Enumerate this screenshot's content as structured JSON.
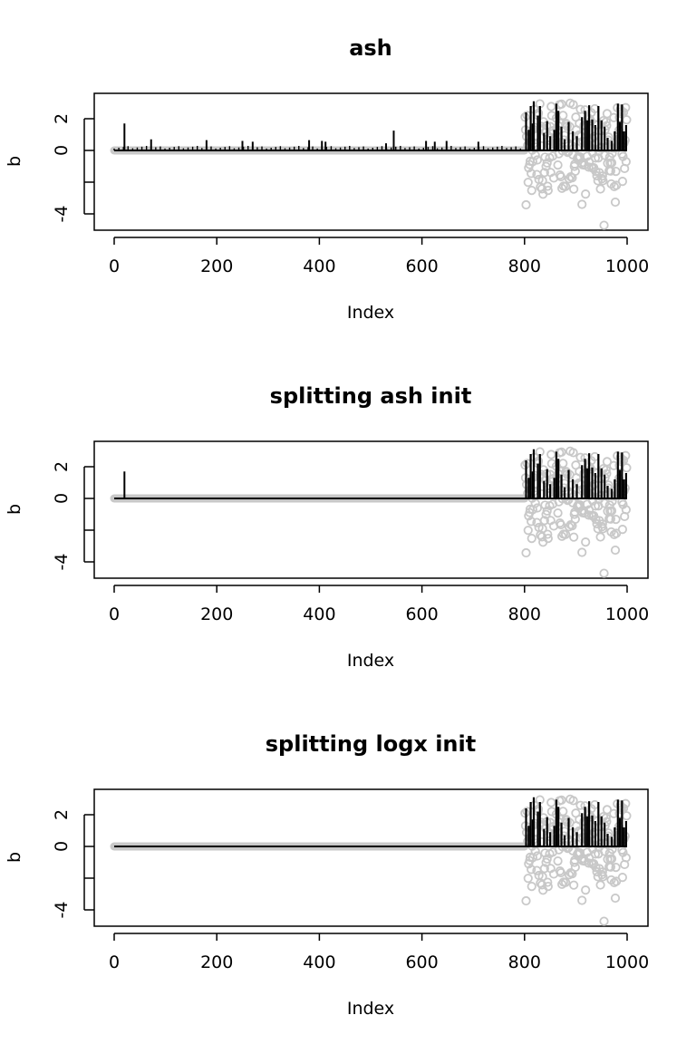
{
  "colors": {
    "true_points": "#c8c8c8",
    "estimate": "#000000",
    "axes": "#000000",
    "background": "#ffffff"
  },
  "chart_data": [
    {
      "type": "scatter",
      "title": "ash",
      "xlabel": "Index",
      "ylabel": "b",
      "xlim": [
        0,
        1000
      ],
      "ylim": [
        -5,
        3.6
      ],
      "x_ticks": [
        "0",
        "200",
        "400",
        "600",
        "800",
        "1000"
      ],
      "y_ticks": [
        "-4",
        "0",
        "2"
      ],
      "points_description": "Grey open circles: true b values (0 for index 1-800, nonzero spread between -5 and 3 for index 801-1000)",
      "estimate_style": "vertical lines (type h)",
      "estimate_spikes": [
        [
          20,
          1.7
        ],
        [
          72,
          0.7
        ],
        [
          180,
          0.65
        ],
        [
          250,
          0.6
        ],
        [
          270,
          0.55
        ],
        [
          380,
          0.65
        ],
        [
          405,
          0.6
        ],
        [
          412,
          0.55
        ],
        [
          530,
          0.45
        ],
        [
          545,
          1.25
        ],
        [
          608,
          0.6
        ],
        [
          625,
          0.55
        ],
        [
          648,
          0.6
        ],
        [
          710,
          0.55
        ]
      ]
    },
    {
      "type": "scatter",
      "title": "splitting ash init",
      "xlabel": "Index",
      "ylabel": "b",
      "xlim": [
        0,
        1000
      ],
      "ylim": [
        -5,
        3.6
      ],
      "x_ticks": [
        "0",
        "200",
        "400",
        "600",
        "800",
        "1000"
      ],
      "y_ticks": [
        "-4",
        "0",
        "2"
      ],
      "estimate_style": "vertical lines (type h)",
      "estimate_spikes": [
        [
          20,
          1.7
        ]
      ]
    },
    {
      "type": "scatter",
      "title": "splitting logx init",
      "xlabel": "Index",
      "ylabel": "b",
      "xlim": [
        0,
        1000
      ],
      "ylim": [
        -5,
        3.6
      ],
      "x_ticks": [
        "0",
        "200",
        "400",
        "600",
        "800",
        "1000"
      ],
      "y_ticks": [
        "-4",
        "0",
        "2"
      ],
      "estimate_style": "vertical lines (type h)",
      "estimate_spikes": []
    }
  ],
  "nonzero_true": [
    2.1,
    1.3,
    -3.43,
    0.87,
    2.21,
    0.32,
    -2.01,
    -1.1,
    1.2,
    -0.89,
    -0.68,
    0.55,
    -1.45,
    -2.52,
    0.02,
    -0.71,
    1.33,
    0.45,
    2.59,
    1.45,
    -0.3,
    0.93,
    0.21,
    -1.52,
    -0.6,
    2.21,
    2.35,
    -1.83,
    1.36,
    2.94,
    -2.31,
    1.52,
    0.29,
    -2.42,
    -1.9,
    -2.76,
    1.81,
    1.35,
    -1.39,
    -0.42,
    1.15,
    -1.01,
    1.55,
    -0.79,
    -2.26,
    -2.52,
    0.64,
    0.34,
    -0.46,
    1.51,
    -1.39,
    2.77,
    2.2,
    1.21,
    -0.36,
    1.25,
    -1.74,
    0.74,
    0.44,
    0.66,
    0.32,
    2.03,
    0.46,
    1.25,
    -0.92,
    1.55,
    -0.21,
    2.88,
    -1.55,
    1.72,
    -1.66,
    2.92,
    -2.39,
    -0.02,
    2.21,
    -2.25,
    0.66,
    0.95,
    0.06,
    -2.27,
    1.7,
    1.66,
    1.52,
    -0.12,
    0.45,
    -0.07,
    -1.79,
    1.5,
    2.98,
    -1.66,
    0.84,
    0.3,
    -1.72,
    -0.27,
    2.89,
    -2.44,
    -1.0,
    -0.86,
    -1.31,
    2.1,
    1.3,
    0.16,
    -0.5,
    -0.47,
    -0.39,
    0.97,
    1.7,
    -0.4,
    2.59,
    0.88,
    -0.8,
    -3.4,
    -0.9,
    0.59,
    -0.76,
    1.58,
    -0.92,
    2.56,
    -2.75,
    0.59,
    0.41,
    -0.37,
    0.34,
    2.02,
    -1.05,
    -0.72,
    1.99,
    0.2,
    1.86,
    2.38,
    -1.08,
    0.77,
    -0.15,
    -1.14,
    -1.09,
    0.88,
    2.63,
    -0.48,
    -1.32,
    1.64,
    -1.6,
    1.59,
    -1.91,
    -0.47,
    -0.06,
    -1.4,
    0.14,
    -2.43,
    0.2,
    1.25,
    -1.78,
    -1.61,
    -1.91,
    1.88,
    -4.72,
    -0.31,
    1.31,
    0.17,
    1.8,
    1.56,
    2.32,
    -0.81,
    0.66,
    0.84,
    -1.28,
    -0.42,
    -0.79,
    -1.3,
    -2.11,
    -0.78,
    -0.18,
    0.15,
    0.47,
    2.07,
    -2.28,
    0.14,
    -3.26,
    -1.32,
    -2.2,
    0.22,
    2.69,
    1.05,
    0.71,
    1.26,
    2.07,
    0.65,
    2.59,
    2.45,
    2.32,
    -0.22,
    -1.95,
    -0.38,
    2.4,
    0.47,
    -1.14,
    0.65,
    2.7,
    -0.71,
    1.93
  ],
  "spikes_region": [
    [
      803,
      2.4
    ],
    [
      808,
      1.3
    ],
    [
      812,
      2.8
    ],
    [
      816,
      1.7
    ],
    [
      818,
      3.1
    ],
    [
      826,
      2.2
    ],
    [
      830,
      2.8
    ],
    [
      838,
      1.1
    ],
    [
      844,
      1.85
    ],
    [
      850,
      0.9
    ],
    [
      858,
      1.3
    ],
    [
      862,
      2.95
    ],
    [
      866,
      2.5
    ],
    [
      872,
      1.5
    ],
    [
      878,
      0.7
    ],
    [
      886,
      1.8
    ],
    [
      894,
      1.2
    ],
    [
      902,
      0.9
    ],
    [
      912,
      2.1
    ],
    [
      918,
      2.5
    ],
    [
      922,
      1.9
    ],
    [
      926,
      2.85
    ],
    [
      932,
      1.95
    ],
    [
      938,
      1.6
    ],
    [
      944,
      2.8
    ],
    [
      950,
      1.9
    ],
    [
      956,
      1.5
    ],
    [
      962,
      0.8
    ],
    [
      970,
      0.6
    ],
    [
      976,
      1.2
    ],
    [
      982,
      2.95
    ],
    [
      986,
      1.8
    ],
    [
      990,
      2.9
    ],
    [
      994,
      1.2
    ],
    [
      998,
      1.6
    ]
  ]
}
